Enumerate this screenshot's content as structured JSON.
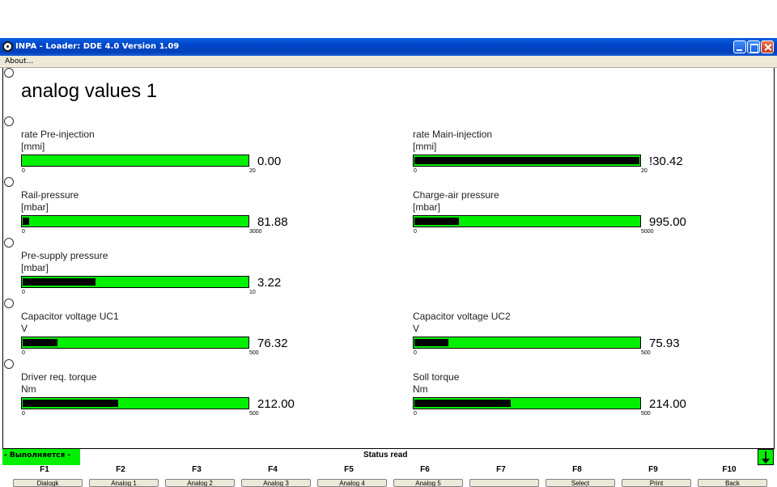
{
  "window": {
    "title": "INPA - Loader:  DDE 4.0 Version 1.09"
  },
  "menu": {
    "about": "About..."
  },
  "page": {
    "title": "analog values 1"
  },
  "colors": {
    "gauge_bg": "#00f000",
    "gauge_fill": "#000000",
    "titlebar": "#0046c8"
  },
  "gauges": [
    {
      "label": "rate Pre-injection",
      "unit": "[mmi]",
      "min": "0",
      "max": "20",
      "value": "0.00",
      "fraction": 0.0
    },
    {
      "label": "rate Main-injection",
      "unit": "[mmi]",
      "min": "0",
      "max": "20",
      "value": "!30.42",
      "fraction": 1.0
    },
    {
      "label": "Rail-pressure",
      "unit": "[mbar]",
      "min": "0",
      "max": "3000",
      "value": "81.88",
      "fraction": 0.027
    },
    {
      "label": "Charge-air pressure",
      "unit": "[mbar]",
      "min": "0",
      "max": "5000",
      "value": "995.00",
      "fraction": 0.199
    },
    {
      "label": "Pre-supply pressure",
      "unit": "[mbar]",
      "min": "0",
      "max": "10",
      "value": "3.22",
      "fraction": 0.322
    },
    {
      "label": "Capacitor voltage UC1",
      "unit": "V",
      "min": "0",
      "max": "500",
      "value": "76.32",
      "fraction": 0.153
    },
    {
      "label": "Capacitor voltage UC2",
      "unit": "V",
      "min": "0",
      "max": "500",
      "value": "75.93",
      "fraction": 0.152
    },
    {
      "label": "Driver req. torque",
      "unit": "Nm",
      "min": "0",
      "max": "500",
      "value": "212.00",
      "fraction": 0.424
    },
    {
      "label": "Soll torque",
      "unit": "Nm",
      "min": "0",
      "max": "500",
      "value": "214.00",
      "fraction": 0.428
    }
  ],
  "status": {
    "running": "- Выполняется -",
    "text": "Status read"
  },
  "fkeys": [
    {
      "key": "F1",
      "label": "Dialogk"
    },
    {
      "key": "F2",
      "label": "Analog 1"
    },
    {
      "key": "F3",
      "label": "Analog 2"
    },
    {
      "key": "F4",
      "label": "Analog 3"
    },
    {
      "key": "F5",
      "label": "Analog 4"
    },
    {
      "key": "F6",
      "label": "Analog 5"
    },
    {
      "key": "F7",
      "label": ""
    },
    {
      "key": "F8",
      "label": "Select"
    },
    {
      "key": "F9",
      "label": "Print"
    },
    {
      "key": "F10",
      "label": "Back"
    }
  ]
}
